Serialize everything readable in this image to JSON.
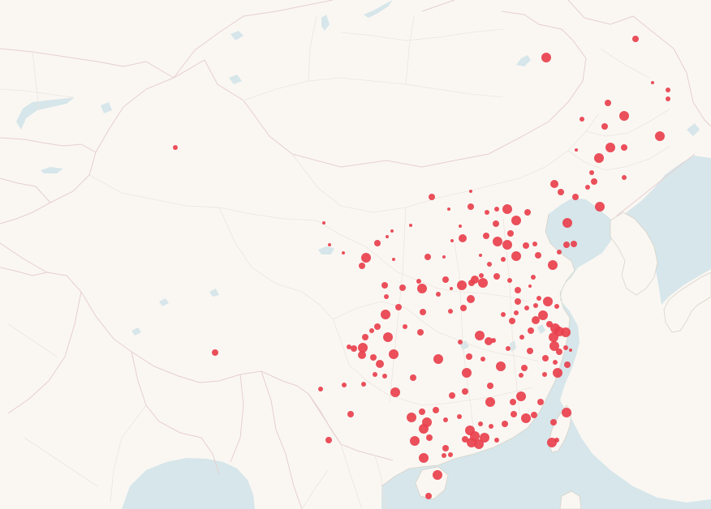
{
  "colors": {
    "land": "#faf7f3",
    "water": "#d6e6ea",
    "country_border": "#e6cfcf",
    "province_border": "#ece4dc",
    "dot": "#e8404d"
  },
  "points": [
    [
      783,
      48,
      4
    ],
    [
      673,
      71,
      6
    ],
    [
      804,
      102,
      2
    ],
    [
      823,
      111,
      3
    ],
    [
      823,
      122,
      3
    ],
    [
      749,
      127,
      4
    ],
    [
      769,
      143,
      6
    ],
    [
      717,
      147,
      3
    ],
    [
      745,
      156,
      4
    ],
    [
      813,
      168,
      6
    ],
    [
      752,
      182,
      6
    ],
    [
      769,
      182,
      4
    ],
    [
      738,
      195,
      6
    ],
    [
      710,
      185,
      2
    ],
    [
      729,
      213,
      3
    ],
    [
      732,
      224,
      4
    ],
    [
      683,
      227,
      5
    ],
    [
      724,
      231,
      3
    ],
    [
      691,
      237,
      4
    ],
    [
      709,
      243,
      4
    ],
    [
      739,
      255,
      6
    ],
    [
      769,
      219,
      3
    ],
    [
      532,
      243,
      4
    ],
    [
      580,
      236,
      2
    ],
    [
      216,
      182,
      3
    ],
    [
      625,
      258,
      6
    ],
    [
      612,
      258,
      3
    ],
    [
      580,
      255,
      4
    ],
    [
      600,
      262,
      3
    ],
    [
      650,
      262,
      4
    ],
    [
      636,
      272,
      6
    ],
    [
      611,
      276,
      4
    ],
    [
      567,
      279,
      2
    ],
    [
      629,
      288,
      4
    ],
    [
      599,
      291,
      4
    ],
    [
      570,
      294,
      5
    ],
    [
      613,
      298,
      6
    ],
    [
      625,
      302,
      6
    ],
    [
      648,
      303,
      4
    ],
    [
      659,
      301,
      3
    ],
    [
      699,
      275,
      6
    ],
    [
      698,
      302,
      4
    ],
    [
      707,
      301,
      4
    ],
    [
      689,
      311,
      3
    ],
    [
      636,
      316,
      6
    ],
    [
      663,
      315,
      4
    ],
    [
      681,
      327,
      6
    ],
    [
      592,
      315,
      2
    ],
    [
      603,
      326,
      3
    ],
    [
      620,
      320,
      3
    ],
    [
      557,
      297,
      2
    ],
    [
      465,
      300,
      4
    ],
    [
      483,
      285,
      2
    ],
    [
      451,
      318,
      6
    ],
    [
      446,
      328,
      4
    ],
    [
      527,
      317,
      4
    ],
    [
      593,
      340,
      3
    ],
    [
      585,
      345,
      5
    ],
    [
      569,
      352,
      6
    ],
    [
      581,
      349,
      4
    ],
    [
      595,
      349,
      6
    ],
    [
      612,
      341,
      4
    ],
    [
      628,
      346,
      3
    ],
    [
      657,
      342,
      3
    ],
    [
      549,
      345,
      4
    ],
    [
      520,
      356,
      6
    ],
    [
      516,
      347,
      3
    ],
    [
      496,
      355,
      4
    ],
    [
      474,
      352,
      4
    ],
    [
      476,
      366,
      3
    ],
    [
      540,
      363,
      3
    ],
    [
      556,
      356,
      2
    ],
    [
      638,
      358,
      4
    ],
    [
      653,
      353,
      2
    ],
    [
      664,
      368,
      3
    ],
    [
      638,
      372,
      4
    ],
    [
      649,
      380,
      3
    ],
    [
      660,
      377,
      3
    ],
    [
      675,
      372,
      6
    ],
    [
      686,
      378,
      3
    ],
    [
      620,
      388,
      3
    ],
    [
      636,
      386,
      3
    ],
    [
      631,
      396,
      4
    ],
    [
      669,
      389,
      6
    ],
    [
      660,
      395,
      5
    ],
    [
      677,
      400,
      4
    ],
    [
      684,
      405,
      6
    ],
    [
      689,
      409,
      6
    ],
    [
      697,
      410,
      6
    ],
    [
      682,
      416,
      6
    ],
    [
      654,
      408,
      4
    ],
    [
      683,
      427,
      6
    ],
    [
      689,
      434,
      4
    ],
    [
      697,
      429,
      3
    ],
    [
      703,
      432,
      2
    ],
    [
      643,
      416,
      3
    ],
    [
      626,
      430,
      3
    ],
    [
      653,
      433,
      4
    ],
    [
      672,
      442,
      4
    ],
    [
      684,
      447,
      3
    ],
    [
      699,
      450,
      4
    ],
    [
      687,
      460,
      6
    ],
    [
      671,
      462,
      3
    ],
    [
      642,
      463,
      3
    ],
    [
      646,
      454,
      4
    ],
    [
      475,
      388,
      6
    ],
    [
      491,
      379,
      4
    ],
    [
      521,
      385,
      4
    ],
    [
      571,
      380,
      4
    ],
    [
      580,
      369,
      5
    ],
    [
      555,
      384,
      3
    ],
    [
      465,
      403,
      4
    ],
    [
      458,
      408,
      3
    ],
    [
      450,
      416,
      4
    ],
    [
      447,
      429,
      6
    ],
    [
      436,
      430,
      4
    ],
    [
      446,
      438,
      5
    ],
    [
      460,
      441,
      4
    ],
    [
      478,
      416,
      6
    ],
    [
      485,
      437,
      6
    ],
    [
      468,
      449,
      5
    ],
    [
      462,
      462,
      3
    ],
    [
      448,
      474,
      3
    ],
    [
      430,
      428,
      3
    ],
    [
      499,
      403,
      3
    ],
    [
      518,
      410,
      4
    ],
    [
      540,
      443,
      6
    ],
    [
      567,
      422,
      3
    ],
    [
      578,
      440,
      4
    ],
    [
      591,
      414,
      6
    ],
    [
      602,
      421,
      5
    ],
    [
      595,
      443,
      3
    ],
    [
      617,
      452,
      6
    ],
    [
      608,
      420,
      3
    ],
    [
      575,
      460,
      6
    ],
    [
      557,
      488,
      4
    ],
    [
      573,
      483,
      4
    ],
    [
      604,
      476,
      4
    ],
    [
      604,
      496,
      6
    ],
    [
      632,
      496,
      4
    ],
    [
      642,
      489,
      6
    ],
    [
      648,
      516,
      6
    ],
    [
      658,
      512,
      4
    ],
    [
      666,
      496,
      4
    ],
    [
      682,
      521,
      4
    ],
    [
      698,
      509,
      6
    ],
    [
      686,
      543,
      3
    ],
    [
      680,
      546,
      6
    ],
    [
      487,
      484,
      6
    ],
    [
      474,
      464,
      3
    ],
    [
      509,
      466,
      4
    ],
    [
      520,
      508,
      4
    ],
    [
      507,
      515,
      6
    ],
    [
      526,
      521,
      6
    ],
    [
      522,
      529,
      6
    ],
    [
      529,
      540,
      4
    ],
    [
      511,
      544,
      6
    ],
    [
      537,
      506,
      4
    ],
    [
      549,
      518,
      3
    ],
    [
      566,
      514,
      3
    ],
    [
      579,
      531,
      6
    ],
    [
      585,
      538,
      6
    ],
    [
      573,
      542,
      4
    ],
    [
      581,
      546,
      6
    ],
    [
      590,
      548,
      6
    ],
    [
      597,
      540,
      6
    ],
    [
      592,
      523,
      3
    ],
    [
      605,
      526,
      3
    ],
    [
      612,
      543,
      3
    ],
    [
      622,
      523,
      4
    ],
    [
      633,
      511,
      4
    ],
    [
      549,
      553,
      4
    ],
    [
      555,
      561,
      3
    ],
    [
      522,
      565,
      6
    ],
    [
      547,
      562,
      3
    ],
    [
      539,
      586,
      6
    ],
    [
      528,
      612,
      4
    ],
    [
      265,
      435,
      4
    ],
    [
      405,
      543,
      4
    ],
    [
      432,
      511,
      4
    ],
    [
      395,
      480,
      3
    ],
    [
      424,
      475,
      3
    ],
    [
      477,
      292,
      2
    ],
    [
      423,
      312,
      2
    ],
    [
      406,
      302,
      2
    ],
    [
      399,
      275,
      2
    ],
    [
      485,
      320,
      2
    ],
    [
      553,
      258,
      2
    ],
    [
      547,
      317,
      2
    ],
    [
      506,
      278,
      2
    ]
  ]
}
